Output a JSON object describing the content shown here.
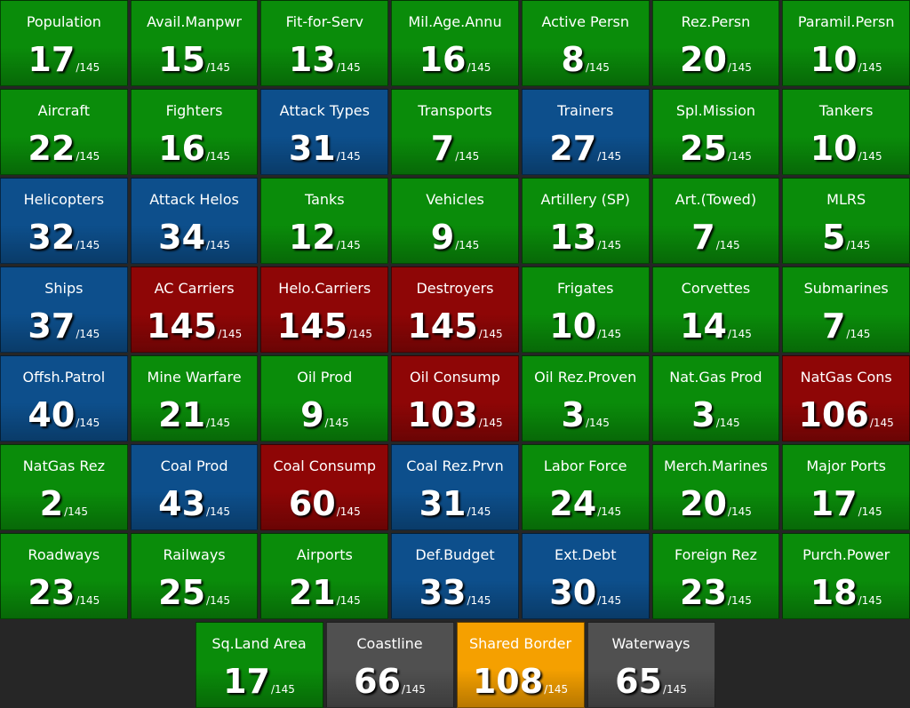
{
  "rows": [
    [
      {
        "label": "Population",
        "rank": 17,
        "total": "/145",
        "color": "#0a8c0a"
      },
      {
        "label": "Avail.Manpwr",
        "rank": 15,
        "total": "/145",
        "color": "#0a8c0a"
      },
      {
        "label": "Fit-for-Serv",
        "rank": 13,
        "total": "/145",
        "color": "#0a8c0a"
      },
      {
        "label": "Mil.Age.Annu",
        "rank": 16,
        "total": "/145",
        "color": "#0a8c0a"
      },
      {
        "label": "Active Persn",
        "rank": 8,
        "total": "/145",
        "color": "#0a8c0a"
      },
      {
        "label": "Rez.Persn",
        "rank": 20,
        "total": "/145",
        "color": "#0a8c0a"
      },
      {
        "label": "Paramil.Persn",
        "rank": 10,
        "total": "/145",
        "color": "#0a8c0a"
      }
    ],
    [
      {
        "label": "Aircraft",
        "rank": 22,
        "total": "/145",
        "color": "#0a8c0a"
      },
      {
        "label": "Fighters",
        "rank": 16,
        "total": "/145",
        "color": "#0a8c0a"
      },
      {
        "label": "Attack Types",
        "rank": 31,
        "total": "/145",
        "color": "#0d4f8c"
      },
      {
        "label": "Transports",
        "rank": 7,
        "total": "/145",
        "color": "#0a8c0a"
      },
      {
        "label": "Trainers",
        "rank": 27,
        "total": "/145",
        "color": "#0d4f8c"
      },
      {
        "label": "Spl.Mission",
        "rank": 25,
        "total": "/145",
        "color": "#0a8c0a"
      },
      {
        "label": "Tankers",
        "rank": 10,
        "total": "/145",
        "color": "#0a8c0a"
      }
    ],
    [
      {
        "label": "Helicopters",
        "rank": 32,
        "total": "/145",
        "color": "#0d4f8c"
      },
      {
        "label": "Attack Helos",
        "rank": 34,
        "total": "/145",
        "color": "#0d4f8c"
      },
      {
        "label": "Tanks",
        "rank": 12,
        "total": "/145",
        "color": "#0a8c0a"
      },
      {
        "label": "Vehicles",
        "rank": 9,
        "total": "/145",
        "color": "#0a8c0a"
      },
      {
        "label": "Artillery (SP)",
        "rank": 13,
        "total": "/145",
        "color": "#0a8c0a"
      },
      {
        "label": "Art.(Towed)",
        "rank": 7,
        "total": "/145",
        "color": "#0a8c0a"
      },
      {
        "label": "MLRS",
        "rank": 5,
        "total": "/145",
        "color": "#0a8c0a"
      }
    ],
    [
      {
        "label": "Ships",
        "rank": 37,
        "total": "/145",
        "color": "#0d4f8c"
      },
      {
        "label": "AC Carriers",
        "rank": 145,
        "total": "/145",
        "color": "#8e0606"
      },
      {
        "label": "Helo.Carriers",
        "rank": 145,
        "total": "/145",
        "color": "#8e0606"
      },
      {
        "label": "Destroyers",
        "rank": 145,
        "total": "/145",
        "color": "#8e0606"
      },
      {
        "label": "Frigates",
        "rank": 10,
        "total": "/145",
        "color": "#0a8c0a"
      },
      {
        "label": "Corvettes",
        "rank": 14,
        "total": "/145",
        "color": "#0a8c0a"
      },
      {
        "label": "Submarines",
        "rank": 7,
        "total": "/145",
        "color": "#0a8c0a"
      }
    ],
    [
      {
        "label": "Offsh.Patrol",
        "rank": 40,
        "total": "/145",
        "color": "#0d4f8c"
      },
      {
        "label": "Mine Warfare",
        "rank": 21,
        "total": "/145",
        "color": "#0a8c0a"
      },
      {
        "label": "Oil Prod",
        "rank": 9,
        "total": "/145",
        "color": "#0a8c0a"
      },
      {
        "label": "Oil Consump",
        "rank": 103,
        "total": "/145",
        "color": "#8e0606"
      },
      {
        "label": "Oil Rez.Proven",
        "rank": 3,
        "total": "/145",
        "color": "#0a8c0a"
      },
      {
        "label": "Nat.Gas Prod",
        "rank": 3,
        "total": "/145",
        "color": "#0a8c0a"
      },
      {
        "label": "NatGas Cons",
        "rank": 106,
        "total": "/145",
        "color": "#8e0606"
      }
    ],
    [
      {
        "label": "NatGas Rez",
        "rank": 2,
        "total": "/145",
        "color": "#0a8c0a"
      },
      {
        "label": "Coal Prod",
        "rank": 43,
        "total": "/145",
        "color": "#0d4f8c"
      },
      {
        "label": "Coal Consump",
        "rank": 60,
        "total": "/145",
        "color": "#8e0606"
      },
      {
        "label": "Coal Rez.Prvn",
        "rank": 31,
        "total": "/145",
        "color": "#0d4f8c"
      },
      {
        "label": "Labor Force",
        "rank": 24,
        "total": "/145",
        "color": "#0a8c0a"
      },
      {
        "label": "Merch.Marines",
        "rank": 20,
        "total": "/145",
        "color": "#0a8c0a"
      },
      {
        "label": "Major Ports",
        "rank": 17,
        "total": "/145",
        "color": "#0a8c0a"
      }
    ],
    [
      {
        "label": "Roadways",
        "rank": 23,
        "total": "/145",
        "color": "#0a8c0a"
      },
      {
        "label": "Railways",
        "rank": 25,
        "total": "/145",
        "color": "#0a8c0a"
      },
      {
        "label": "Airports",
        "rank": 21,
        "total": "/145",
        "color": "#0a8c0a"
      },
      {
        "label": "Def.Budget",
        "rank": 33,
        "total": "/145",
        "color": "#0d4f8c"
      },
      {
        "label": "Ext.Debt",
        "rank": 30,
        "total": "/145",
        "color": "#0d4f8c"
      },
      {
        "label": "Foreign Rez",
        "rank": 23,
        "total": "/145",
        "color": "#0a8c0a"
      },
      {
        "label": "Purch.Power",
        "rank": 18,
        "total": "/145",
        "color": "#0a8c0a"
      }
    ],
    [
      {
        "label": "Sq.Land Area",
        "rank": 17,
        "total": "/145",
        "color": "#0a8c0a"
      },
      {
        "label": "Coastline",
        "rank": 66,
        "total": "/145",
        "color": "#505050"
      },
      {
        "label": "Shared Border",
        "rank": 108,
        "total": "/145",
        "color": "#f5a000"
      },
      {
        "label": "Waterways",
        "rank": 65,
        "total": "/145",
        "color": "#505050"
      }
    ]
  ]
}
